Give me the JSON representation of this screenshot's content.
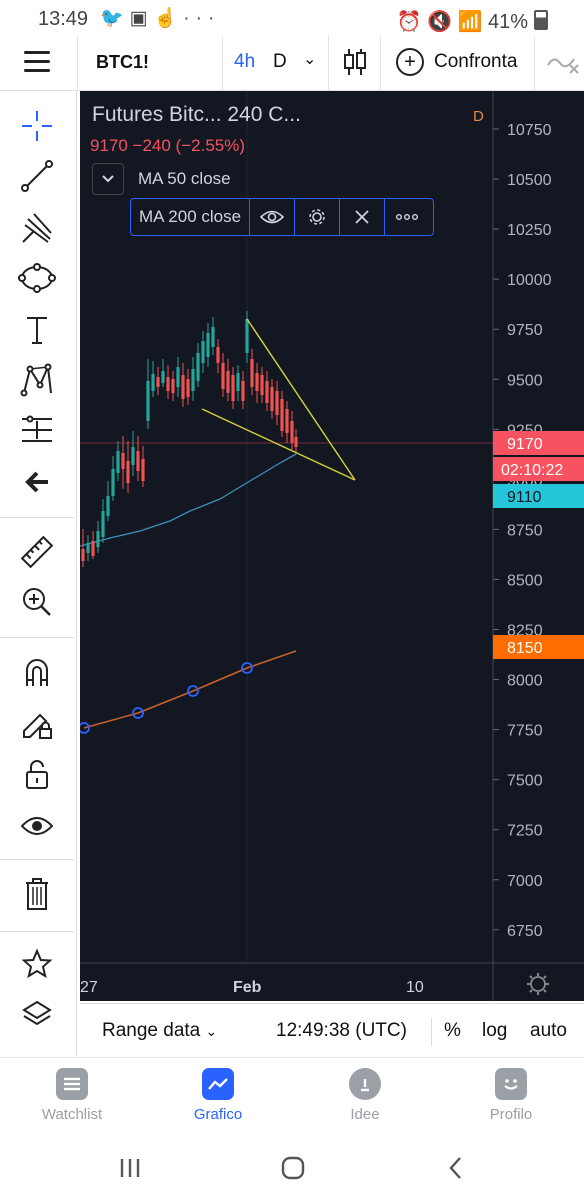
{
  "status_bar": {
    "time": "13:49",
    "left_icons": [
      "twitter-icon",
      "image-icon",
      "hand-icon",
      "more-dots-icon"
    ],
    "battery": "41%"
  },
  "toolbar": {
    "symbol": "BTC1!",
    "interval_selected": "4h",
    "interval_other": "D",
    "compare_label": "Confronta"
  },
  "legend": {
    "title": "Futures Bitc... 240 C...",
    "source_badge": "D",
    "price_line": "9170 −240 (−2.55%)",
    "ma50_label": "MA 50 close",
    "ma200_label": "MA 200 close"
  },
  "price_scale": {
    "ticks": [
      "10750",
      "10500",
      "10250",
      "10000",
      "9750",
      "9500",
      "9250",
      "9000",
      "8750",
      "8500",
      "8250",
      "8000",
      "7750",
      "7500",
      "7250",
      "7000",
      "6750"
    ],
    "last_price": "9170",
    "countdown": "02:10:22",
    "ma50_value": "9110",
    "ma200_value": "8150",
    "colors": {
      "last_price": "#f7525f",
      "ma50": "#26c6da",
      "ma200": "#ff6d00"
    }
  },
  "time_scale": {
    "labels": [
      "27",
      "Feb",
      "10"
    ]
  },
  "chart_data": {
    "type": "candlestick",
    "series": [
      {
        "name": "MA 50 close",
        "color": "#3f8fb5"
      },
      {
        "name": "MA 200 close",
        "color": "#c9632c"
      }
    ],
    "drawings": [
      {
        "type": "triangle",
        "color": "#d4d43a"
      }
    ]
  },
  "range_bar": {
    "range_label": "Range data",
    "time": "12:49:38 (UTC)",
    "percent": "%",
    "log": "log",
    "auto": "auto"
  },
  "bottom_nav": [
    {
      "label": "Watchlist",
      "active": false
    },
    {
      "label": "Grafico",
      "active": true
    },
    {
      "label": "Idee",
      "active": false
    },
    {
      "label": "Profilo",
      "active": false
    }
  ]
}
